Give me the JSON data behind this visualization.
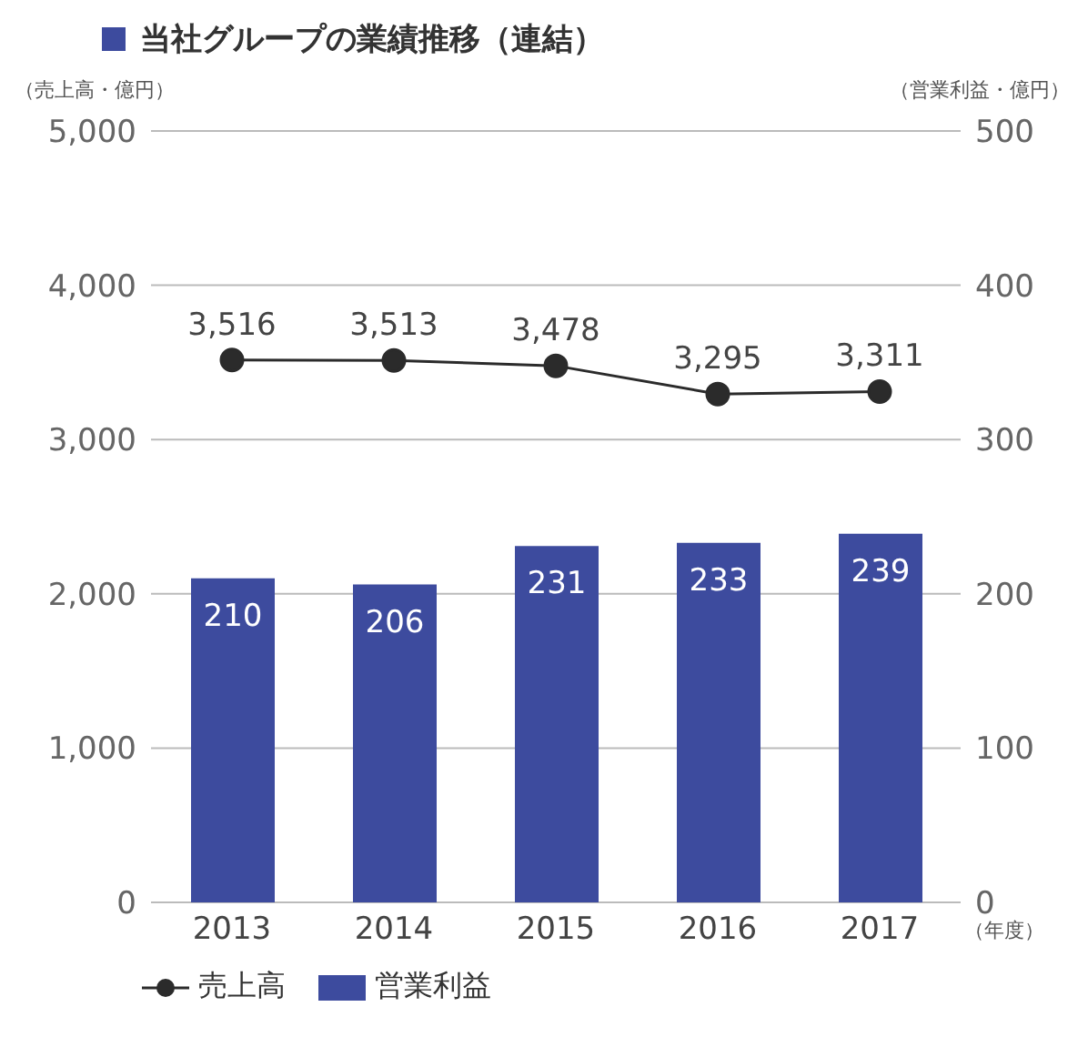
{
  "chart_data": {
    "type": "bar",
    "title": "当社グループの業績推移（連結）",
    "ylabel": "（売上高・億円）",
    "y2label": "（営業利益・億円）",
    "xlabel": "（年度）",
    "categories": [
      "2013",
      "2014",
      "2015",
      "2016",
      "2017"
    ],
    "series": [
      {
        "name": "売上高",
        "type": "line",
        "color": "#2b2b2b",
        "axis": "y",
        "values": [
          3516,
          3513,
          3478,
          3295,
          3311
        ],
        "value_labels": [
          "3,516",
          "3,513",
          "3,478",
          "3,295",
          "3,311"
        ]
      },
      {
        "name": "営業利益",
        "color": "#3d4b9e",
        "axis": "y2",
        "values": [
          210,
          206,
          231,
          233,
          239
        ],
        "value_labels": [
          "210",
          "206",
          "231",
          "233",
          "239"
        ]
      }
    ],
    "ylim": [
      0,
      5000
    ],
    "yticks": [
      {
        "value": 0,
        "label": "0"
      },
      {
        "value": 1000,
        "label": "1,000"
      },
      {
        "value": 2000,
        "label": "2,000"
      },
      {
        "value": 3000,
        "label": "3,000"
      },
      {
        "value": 4000,
        "label": "4,000"
      },
      {
        "value": 5000,
        "label": "5,000"
      }
    ],
    "y2lim": [
      0,
      500
    ],
    "y2ticks": [
      0,
      100,
      200,
      300,
      400,
      500
    ],
    "grid": "y",
    "legend": "bottom",
    "marker": "circle"
  }
}
